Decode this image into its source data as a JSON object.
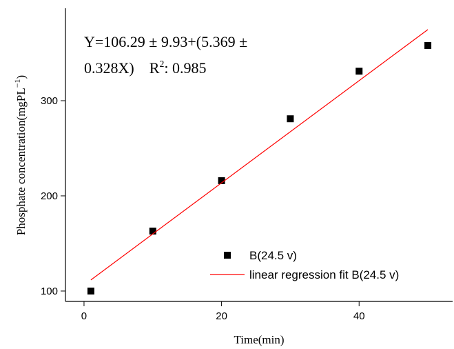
{
  "chart_data": {
    "type": "scatter",
    "annotation": {
      "line1": "Y=106.29 ± 9.93+(5.369 ±",
      "line2_start": "0.328X)    R",
      "line2_sup": "2",
      "line2_end": ": 0.985"
    },
    "x_label": "Time(min)",
    "y_label": {
      "start": "Phosphate concentration(mgPL",
      "sup": "−1",
      "end": ")"
    },
    "xlim": [
      -2.7,
      53.6
    ],
    "ylim": [
      89.1,
      397.1
    ],
    "xticks": [
      0,
      20,
      40
    ],
    "yticks": [
      100,
      200,
      300
    ],
    "legend": "lower right",
    "series": [
      {
        "name": "B(24.5 v)",
        "type": "scatter",
        "color": "#000000",
        "x": [
          1,
          10,
          20,
          30,
          40,
          50
        ],
        "values": [
          100,
          163,
          216,
          281,
          331,
          358
        ]
      },
      {
        "name": "linear regression fit B(24.5 v)",
        "type": "line",
        "color": "#ff0000",
        "x": [
          1,
          50
        ],
        "values": [
          111.66,
          374.74
        ]
      }
    ]
  }
}
